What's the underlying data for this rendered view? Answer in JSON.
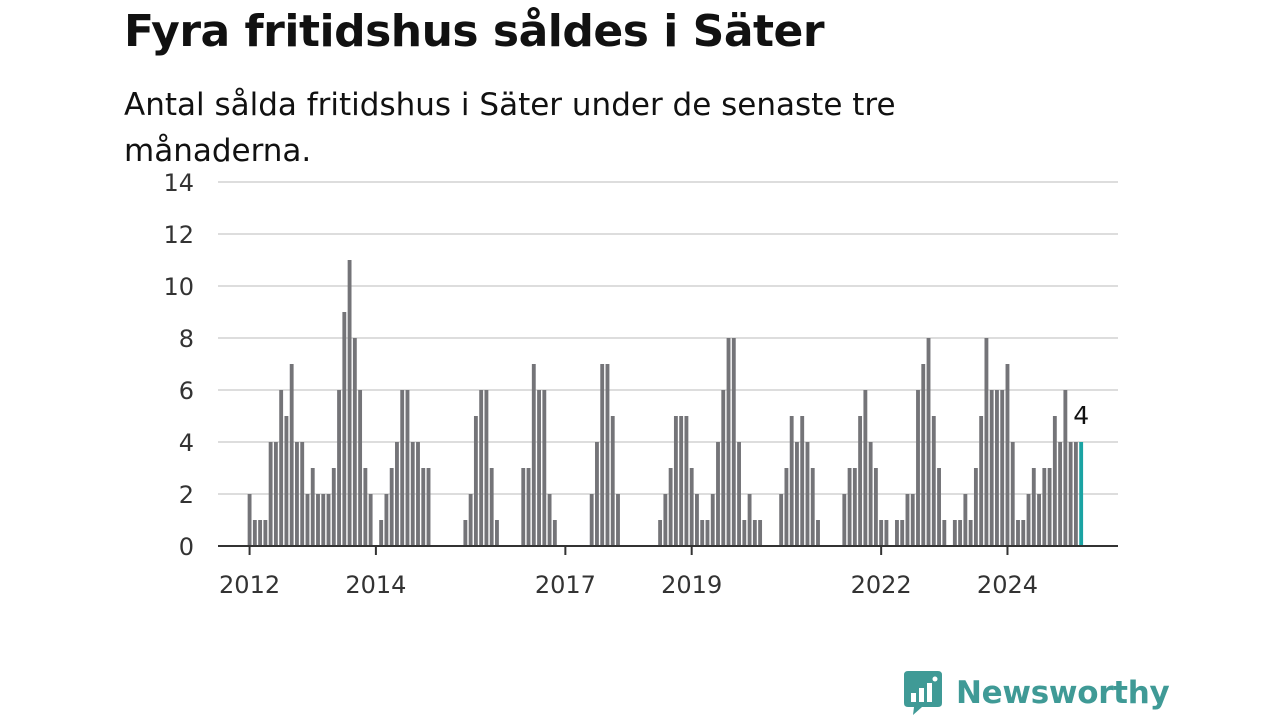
{
  "header": {
    "title": "Fyra fritidshus såldes i Säter",
    "subtitle": "Antal sålda fritidshus i Säter under de senaste tre månaderna."
  },
  "brand": {
    "name": "Newsworthy",
    "color": "#3f9a96"
  },
  "colors": {
    "bar": "#747478",
    "highlight": "#1aa3a3",
    "grid": "#dddddd",
    "axis": "#333333"
  },
  "chart_data": {
    "type": "bar",
    "title": "Fyra fritidshus såldes i Säter",
    "subtitle": "Antal sålda fritidshus i Säter under de senaste tre månaderna.",
    "xlabel": "",
    "ylabel": "",
    "ylim": [
      0,
      14
    ],
    "yticks": [
      0,
      2,
      4,
      6,
      8,
      10,
      12,
      14
    ],
    "xlim": [
      "2011-07",
      "2025-10"
    ],
    "xticks": [
      "2012",
      "2014",
      "2017",
      "2019",
      "2022",
      "2024"
    ],
    "grid": true,
    "highlight": {
      "x": "2025-03",
      "value": 4,
      "label": "4"
    },
    "series": [
      {
        "values": [
          [
            "2012-01",
            2
          ],
          [
            "2012-02",
            1
          ],
          [
            "2012-03",
            1
          ],
          [
            "2012-04",
            1
          ],
          [
            "2012-05",
            4
          ],
          [
            "2012-06",
            4
          ],
          [
            "2012-07",
            6
          ],
          [
            "2012-08",
            5
          ],
          [
            "2012-09",
            7
          ],
          [
            "2012-10",
            4
          ],
          [
            "2012-11",
            4
          ],
          [
            "2012-12",
            2
          ],
          [
            "2013-01",
            3
          ],
          [
            "2013-02",
            2
          ],
          [
            "2013-03",
            2
          ],
          [
            "2013-04",
            2
          ],
          [
            "2013-05",
            3
          ],
          [
            "2013-06",
            6
          ],
          [
            "2013-07",
            9
          ],
          [
            "2013-08",
            11
          ],
          [
            "2013-09",
            8
          ],
          [
            "2013-10",
            6
          ],
          [
            "2013-11",
            3
          ],
          [
            "2013-12",
            2
          ],
          [
            "2014-01",
            0
          ],
          [
            "2014-02",
            1
          ],
          [
            "2014-03",
            2
          ],
          [
            "2014-04",
            3
          ],
          [
            "2014-05",
            4
          ],
          [
            "2014-06",
            6
          ],
          [
            "2014-07",
            6
          ],
          [
            "2014-08",
            4
          ],
          [
            "2014-09",
            4
          ],
          [
            "2014-10",
            3
          ],
          [
            "2014-11",
            3
          ],
          [
            "2014-12",
            0
          ],
          [
            "2015-01",
            0
          ],
          [
            "2015-02",
            0
          ],
          [
            "2015-03",
            0
          ],
          [
            "2015-04",
            0
          ],
          [
            "2015-05",
            0
          ],
          [
            "2015-06",
            1
          ],
          [
            "2015-07",
            2
          ],
          [
            "2015-08",
            5
          ],
          [
            "2015-09",
            6
          ],
          [
            "2015-10",
            6
          ],
          [
            "2015-11",
            3
          ],
          [
            "2015-12",
            1
          ],
          [
            "2016-01",
            0
          ],
          [
            "2016-02",
            0
          ],
          [
            "2016-03",
            0
          ],
          [
            "2016-04",
            0
          ],
          [
            "2016-05",
            3
          ],
          [
            "2016-06",
            3
          ],
          [
            "2016-07",
            7
          ],
          [
            "2016-08",
            6
          ],
          [
            "2016-09",
            6
          ],
          [
            "2016-10",
            2
          ],
          [
            "2016-11",
            1
          ],
          [
            "2016-12",
            0
          ],
          [
            "2017-01",
            0
          ],
          [
            "2017-02",
            0
          ],
          [
            "2017-03",
            0
          ],
          [
            "2017-04",
            0
          ],
          [
            "2017-05",
            0
          ],
          [
            "2017-06",
            2
          ],
          [
            "2017-07",
            4
          ],
          [
            "2017-08",
            7
          ],
          [
            "2017-09",
            7
          ],
          [
            "2017-10",
            5
          ],
          [
            "2017-11",
            2
          ],
          [
            "2017-12",
            0
          ],
          [
            "2018-01",
            0
          ],
          [
            "2018-02",
            0
          ],
          [
            "2018-03",
            0
          ],
          [
            "2018-04",
            0
          ],
          [
            "2018-05",
            0
          ],
          [
            "2018-06",
            0
          ],
          [
            "2018-07",
            1
          ],
          [
            "2018-08",
            2
          ],
          [
            "2018-09",
            3
          ],
          [
            "2018-10",
            5
          ],
          [
            "2018-11",
            5
          ],
          [
            "2018-12",
            5
          ],
          [
            "2019-01",
            3
          ],
          [
            "2019-02",
            2
          ],
          [
            "2019-03",
            1
          ],
          [
            "2019-04",
            1
          ],
          [
            "2019-05",
            2
          ],
          [
            "2019-06",
            4
          ],
          [
            "2019-07",
            6
          ],
          [
            "2019-08",
            8
          ],
          [
            "2019-09",
            8
          ],
          [
            "2019-10",
            4
          ],
          [
            "2019-11",
            1
          ],
          [
            "2019-12",
            2
          ],
          [
            "2020-01",
            1
          ],
          [
            "2020-02",
            1
          ],
          [
            "2020-03",
            0
          ],
          [
            "2020-04",
            0
          ],
          [
            "2020-05",
            0
          ],
          [
            "2020-06",
            2
          ],
          [
            "2020-07",
            3
          ],
          [
            "2020-08",
            5
          ],
          [
            "2020-09",
            4
          ],
          [
            "2020-10",
            5
          ],
          [
            "2020-11",
            4
          ],
          [
            "2020-12",
            3
          ],
          [
            "2021-01",
            1
          ],
          [
            "2021-02",
            0
          ],
          [
            "2021-03",
            0
          ],
          [
            "2021-04",
            0
          ],
          [
            "2021-05",
            0
          ],
          [
            "2021-06",
            2
          ],
          [
            "2021-07",
            3
          ],
          [
            "2021-08",
            3
          ],
          [
            "2021-09",
            5
          ],
          [
            "2021-10",
            6
          ],
          [
            "2021-11",
            4
          ],
          [
            "2021-12",
            3
          ],
          [
            "2022-01",
            1
          ],
          [
            "2022-02",
            1
          ],
          [
            "2022-03",
            0
          ],
          [
            "2022-04",
            1
          ],
          [
            "2022-05",
            1
          ],
          [
            "2022-06",
            2
          ],
          [
            "2022-07",
            2
          ],
          [
            "2022-08",
            6
          ],
          [
            "2022-09",
            7
          ],
          [
            "2022-10",
            8
          ],
          [
            "2022-11",
            5
          ],
          [
            "2022-12",
            3
          ],
          [
            "2023-01",
            1
          ],
          [
            "2023-02",
            0
          ],
          [
            "2023-03",
            1
          ],
          [
            "2023-04",
            1
          ],
          [
            "2023-05",
            2
          ],
          [
            "2023-06",
            1
          ],
          [
            "2023-07",
            3
          ],
          [
            "2023-08",
            5
          ],
          [
            "2023-09",
            8
          ],
          [
            "2023-10",
            6
          ],
          [
            "2023-11",
            6
          ],
          [
            "2023-12",
            6
          ],
          [
            "2024-01",
            7
          ],
          [
            "2024-02",
            4
          ],
          [
            "2024-03",
            1
          ],
          [
            "2024-04",
            1
          ],
          [
            "2024-05",
            2
          ],
          [
            "2024-06",
            3
          ],
          [
            "2024-07",
            2
          ],
          [
            "2024-08",
            3
          ],
          [
            "2024-09",
            3
          ],
          [
            "2024-10",
            5
          ],
          [
            "2024-11",
            4
          ],
          [
            "2024-12",
            6
          ],
          [
            "2025-01",
            4
          ],
          [
            "2025-02",
            4
          ],
          [
            "2025-03",
            4
          ]
        ]
      }
    ]
  }
}
